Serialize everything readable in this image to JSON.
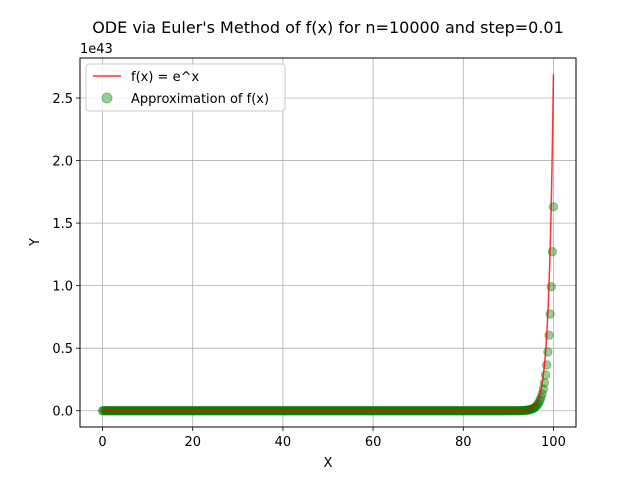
{
  "chart_data": {
    "type": "line",
    "title": "ODE via Euler's Method of f(x) for n=10000 and step=0.01",
    "xlabel": "X",
    "ylabel": "Y",
    "y_offset_label": "1e43",
    "xlim": [
      -5,
      105
    ],
    "ylim": [
      -0.13,
      2.82
    ],
    "x_ticks": [
      0,
      20,
      40,
      60,
      80,
      100
    ],
    "x_tick_labels": [
      "0",
      "20",
      "40",
      "60",
      "80",
      "100"
    ],
    "y_ticks": [
      0.0,
      0.5,
      1.0,
      1.5,
      2.0,
      2.5
    ],
    "y_tick_labels": [
      "0.0",
      "0.5",
      "1.0",
      "1.5",
      "2.0",
      "2.5"
    ],
    "y_scale_factor": 1e+43,
    "grid": true,
    "legend_position": "upper-left",
    "x_range": [
      0,
      100
    ],
    "n": 10000,
    "step": 0.01,
    "series": [
      {
        "name": "f(x) = e^x",
        "kind": "line",
        "color": "#ff0000",
        "function": "exp",
        "peak_value": 2.69
      },
      {
        "name": "Approximation of f(x)",
        "kind": "scatter",
        "color": "#008000",
        "function": "euler",
        "peak_value": 1.63
      }
    ]
  }
}
